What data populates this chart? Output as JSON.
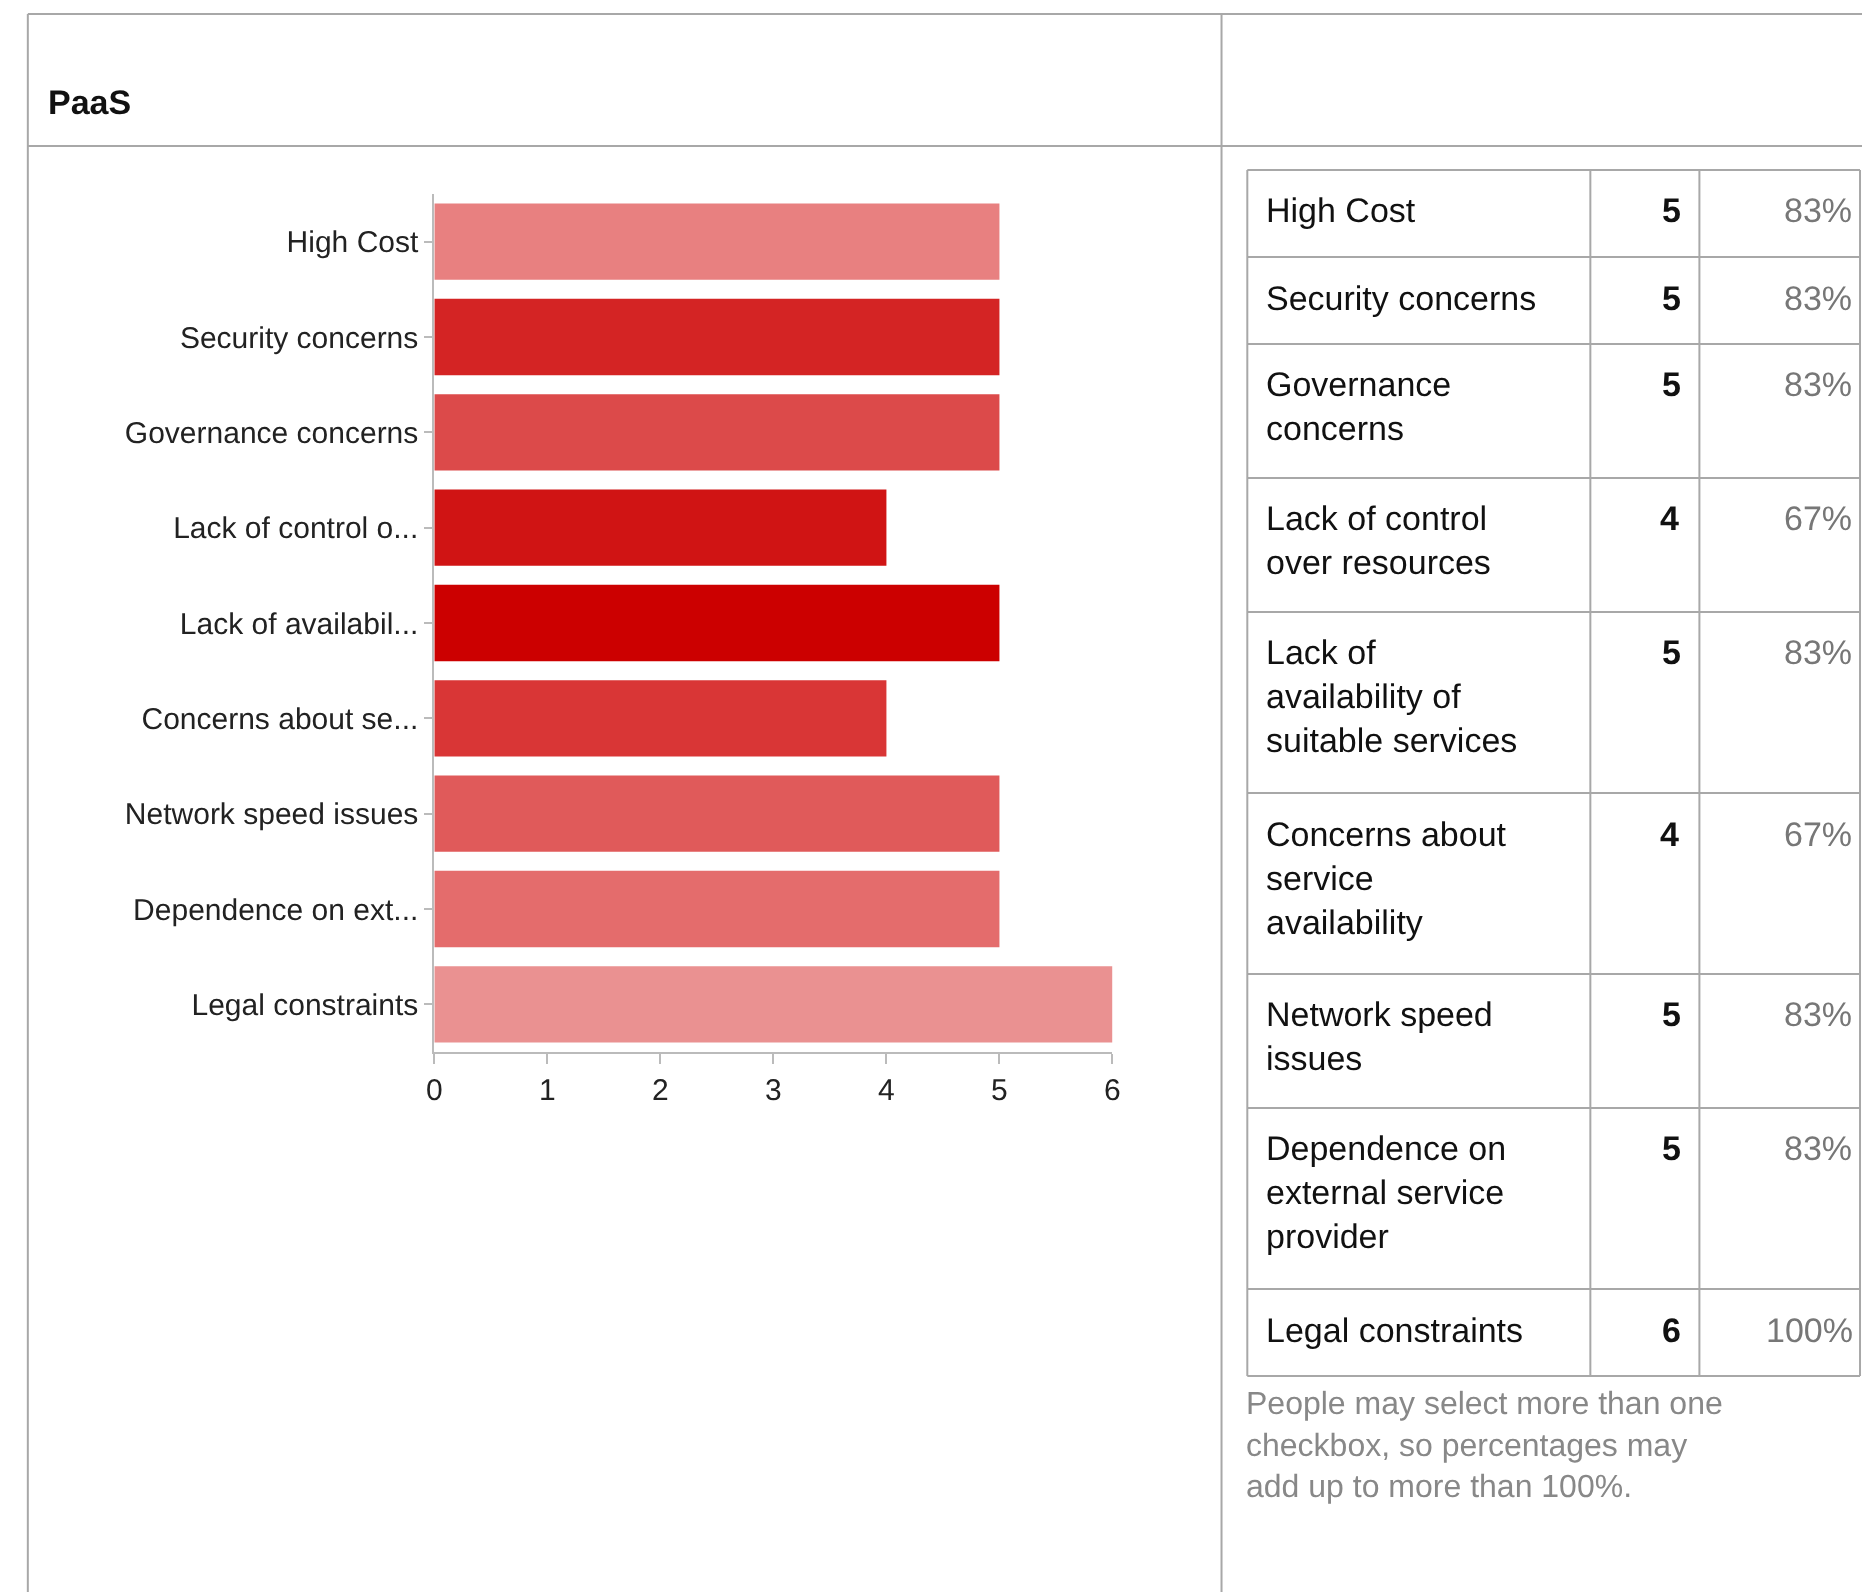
{
  "chart_data": [
    {
      "type": "bar",
      "orientation": "horizontal",
      "title": "PaaS",
      "categories": [
        "High Cost",
        "Security concerns",
        "Governance concerns",
        "Lack of control o...",
        "Lack of availabil...",
        "Concerns about se...",
        "Network speed issues",
        "Dependence on ext...",
        "Legal constraints"
      ],
      "values": [
        5,
        5,
        5,
        4,
        5,
        4,
        5,
        5,
        6
      ],
      "colors": [
        "#e88080",
        "#d42424",
        "#dc4a4a",
        "#d01414",
        "#cc0000",
        "#d93636",
        "#e05a5a",
        "#e46c6c",
        "#ea9191"
      ],
      "xlim": [
        0,
        6
      ],
      "xticks": [
        0,
        1,
        2,
        3,
        4,
        5,
        6
      ]
    },
    {
      "type": "other",
      "categories": [
        "High Cost",
        "Security concerns",
        "Governance concerns",
        "Lack of control over resources",
        "Lack of availability of suitable services",
        "Concerns about service availability",
        "Network speed issues",
        "Dependence on external service provider",
        "Legal constraints"
      ],
      "series": [
        {
          "color": "#111111",
          "values": [
            5,
            5,
            5,
            4,
            5,
            4,
            5,
            5,
            6
          ]
        },
        {
          "color": "#777777",
          "values": [
            83,
            83,
            83,
            67,
            83,
            67,
            83,
            83,
            100
          ],
          "value_labels": [
            "83%",
            "83%",
            "83%",
            "67%",
            "83%",
            "67%",
            "83%",
            "83%",
            "100%"
          ]
        }
      ],
      "data_labels": true,
      "annotations": [
        "People may select more than one checkbox, so percentages may add up to more than 100%."
      ]
    }
  ]
}
